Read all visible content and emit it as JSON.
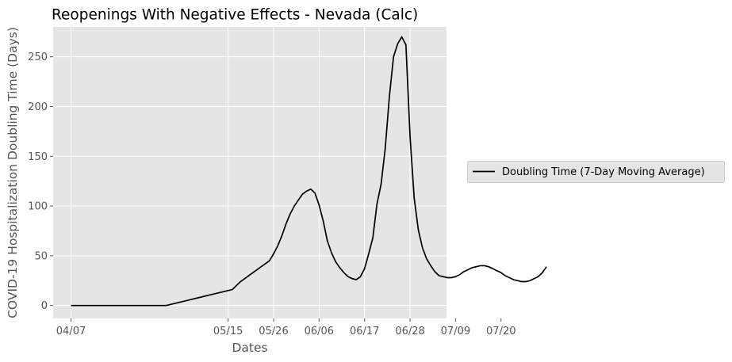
{
  "chart_data": {
    "type": "line",
    "title": "Reopenings With Negative Effects - Nevada (Calc)",
    "xlabel": "Dates",
    "ylabel": "COVID-19 Hospitalization Doubling Time (Days)",
    "x_ticks": [
      "04/07",
      "05/15",
      "05/26",
      "06/06",
      "06/17",
      "06/28",
      "07/09",
      "07/20"
    ],
    "y_ticks": [
      0,
      50,
      100,
      150,
      200,
      250
    ],
    "ylim": [
      -13,
      280
    ],
    "grid": true,
    "legend_position": "right",
    "line_color": "#000000",
    "background_color": "#e5e5e5",
    "series": [
      {
        "name": "Doubling Time (7-Day Moving Average)",
        "x": [
          "04/07",
          "04/08",
          "04/09",
          "04/10",
          "04/11",
          "04/12",
          "04/13",
          "04/14",
          "04/15",
          "04/16",
          "04/17",
          "04/18",
          "04/19",
          "04/20",
          "04/21",
          "04/22",
          "04/23",
          "04/24",
          "04/25",
          "04/26",
          "04/27",
          "04/28",
          "04/29",
          "04/30",
          "05/01",
          "05/02",
          "05/03",
          "05/04",
          "05/05",
          "05/06",
          "05/07",
          "05/08",
          "05/09",
          "05/10",
          "05/11",
          "05/12",
          "05/13",
          "05/14",
          "05/15",
          "05/16",
          "05/17",
          "05/18",
          "05/19",
          "05/20",
          "05/21",
          "05/22",
          "05/23",
          "05/24",
          "05/25",
          "05/26",
          "05/27",
          "05/28",
          "05/29",
          "05/30",
          "05/31",
          "06/01",
          "06/02",
          "06/03",
          "06/04",
          "06/05",
          "06/06",
          "06/07",
          "06/08",
          "06/09",
          "06/10",
          "06/11",
          "06/12",
          "06/13",
          "06/14",
          "06/15",
          "06/16",
          "06/17",
          "06/18",
          "06/19",
          "06/20",
          "06/21",
          "06/22",
          "06/23",
          "06/24",
          "06/25",
          "06/26",
          "06/27",
          "06/28",
          "06/29",
          "06/30",
          "07/01",
          "07/02",
          "07/03",
          "07/04",
          "07/05",
          "07/06",
          "07/07",
          "07/08",
          "07/09",
          "07/10",
          "07/11",
          "07/12",
          "07/13",
          "07/14",
          "07/15",
          "07/16",
          "07/17",
          "07/18",
          "07/19",
          "07/20",
          "07/21",
          "07/22",
          "07/23",
          "07/24",
          "07/25",
          "07/26",
          "07/27",
          "07/28",
          "07/29",
          "07/30",
          "07/31"
        ],
        "values": [
          0,
          0,
          0,
          0,
          0,
          0,
          0,
          0,
          0,
          0,
          0,
          0,
          0,
          0,
          0,
          0,
          0,
          0,
          0,
          0,
          0,
          0,
          0,
          0,
          1,
          2,
          3,
          4,
          5,
          6,
          7,
          8,
          9,
          10,
          11,
          12,
          13,
          14,
          15,
          16,
          20,
          24,
          27,
          30,
          33,
          36,
          39,
          42,
          45,
          52,
          60,
          70,
          82,
          92,
          100,
          106,
          112,
          115,
          117,
          113,
          101,
          85,
          65,
          53,
          44,
          38,
          33,
          29,
          27,
          26,
          29,
          37,
          52,
          68,
          102,
          122,
          158,
          210,
          250,
          263,
          270,
          262,
          170,
          108,
          76,
          58,
          47,
          40,
          34,
          30,
          29,
          28,
          28,
          29,
          31,
          34,
          36,
          38,
          39,
          40,
          40,
          39,
          37,
          35,
          33,
          30,
          28,
          26,
          25,
          24,
          24,
          25,
          27,
          29,
          33,
          39
        ]
      }
    ]
  }
}
